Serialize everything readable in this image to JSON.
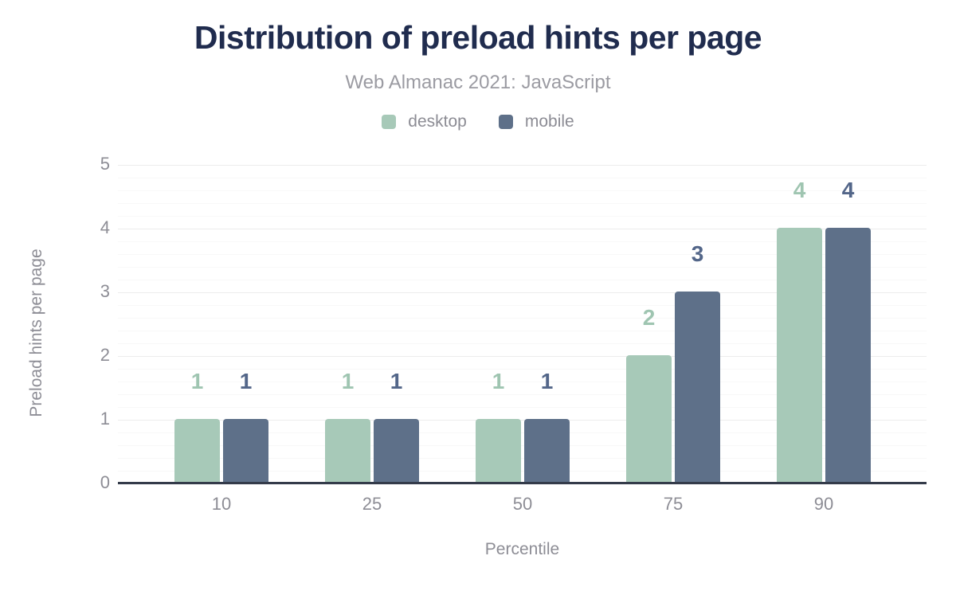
{
  "title": "Distribution of preload hints per page",
  "subtitle": "Web Almanac 2021: JavaScript",
  "legend": [
    {
      "label": "desktop",
      "color": "#a7c9b8"
    },
    {
      "label": "mobile",
      "color": "#5e7089"
    }
  ],
  "colors": {
    "title": "#202c4e",
    "subtitle": "#9b9ba2",
    "axis_text": "#8d8d95",
    "axis_line": "#343b4a",
    "gridline_major": "#ececec",
    "gridline_minor": "#f8f8f8",
    "desktop": "#a7c9b8",
    "mobile": "#5e7089"
  },
  "chart_data": {
    "type": "bar",
    "title": "Distribution of preload hints per page",
    "subtitle": "Web Almanac 2021: JavaScript",
    "categories": [
      "10",
      "25",
      "50",
      "75",
      "90"
    ],
    "series": [
      {
        "name": "desktop",
        "color": "#a7c9b8",
        "label_color": "#9fc5b1",
        "values": [
          1,
          1,
          1,
          2,
          4
        ]
      },
      {
        "name": "mobile",
        "color": "#5e7089",
        "label_color": "#536689",
        "values": [
          1,
          1,
          1,
          3,
          4
        ]
      }
    ],
    "xlabel": "Percentile",
    "ylabel": "Preload hints per page",
    "ylim": [
      0,
      5
    ],
    "yticks": [
      0,
      1,
      2,
      3,
      4,
      5
    ],
    "minor_tick_interval": 0.2,
    "grid": "horizontal major+minor",
    "legend_position": "top",
    "value_labels": "above bars, colored per series"
  }
}
